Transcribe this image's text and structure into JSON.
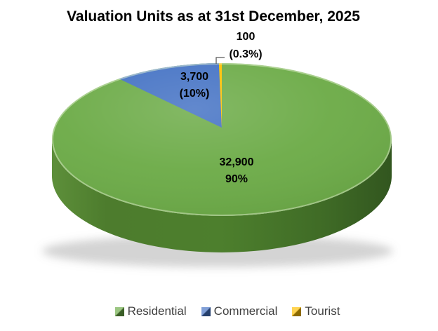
{
  "chart_data": {
    "type": "pie",
    "style": "3d",
    "title": "Valuation Units as at 31st December, 2025",
    "categories": [
      "Residential",
      "Commercial",
      "Tourist"
    ],
    "values": [
      32900,
      3700,
      100
    ],
    "percent_labels": [
      "90%",
      "(10%)",
      "(0.3%)"
    ],
    "value_labels": [
      "32,900",
      "3,700",
      "100"
    ],
    "colors": {
      "Residential": "#6CAB47",
      "Commercial": "#4472C4",
      "Tourist": "#FFC000"
    },
    "start_angle_deg": 0,
    "direction": "clockwise",
    "legend_position": "bottom",
    "background": "#FFFFFF",
    "label_color": "#000000"
  },
  "slice_labels": [
    {
      "value_text": "32,900",
      "pct_text": "90%"
    },
    {
      "value_text": "3,700",
      "pct_text": "(10%)"
    },
    {
      "value_text": "100",
      "pct_text": "(0.3%)"
    }
  ],
  "legend": {
    "items": [
      {
        "label": "Residential",
        "color": "#6CAB47"
      },
      {
        "label": "Commercial",
        "color": "#4472C4"
      },
      {
        "label": "Tourist",
        "color": "#FFC000"
      }
    ]
  }
}
